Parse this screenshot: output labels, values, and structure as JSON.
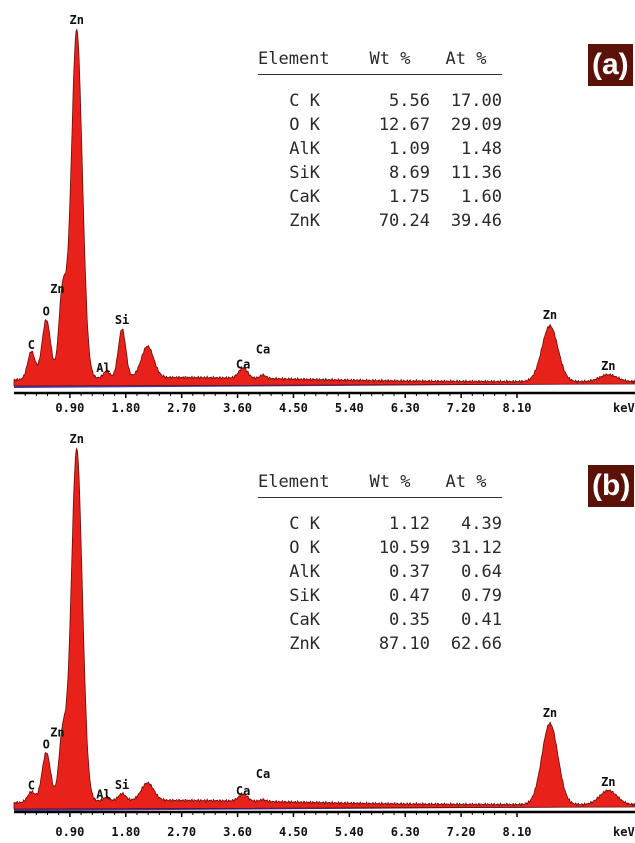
{
  "panels": [
    {
      "tag": "(a)",
      "table": {
        "headers": [
          "Element",
          "Wt %",
          "At %"
        ],
        "rows": [
          {
            "el": "C K",
            "wt": "5.56",
            "at": "17.00"
          },
          {
            "el": "O K",
            "wt": "12.67",
            "at": "29.09"
          },
          {
            "el": "AlK",
            "wt": "1.09",
            "at": "1.48"
          },
          {
            "el": "SiK",
            "wt": "8.69",
            "at": "11.36"
          },
          {
            "el": "CaK",
            "wt": "1.75",
            "at": "1.60"
          },
          {
            "el": "ZnK",
            "wt": "70.24",
            "at": "39.46"
          }
        ]
      }
    },
    {
      "tag": "(b)",
      "table": {
        "headers": [
          "Element",
          "Wt %",
          "At %"
        ],
        "rows": [
          {
            "el": "C K",
            "wt": "1.12",
            "at": "4.39"
          },
          {
            "el": "O K",
            "wt": "10.59",
            "at": "31.12"
          },
          {
            "el": "AlK",
            "wt": "0.37",
            "at": "0.64"
          },
          {
            "el": "SiK",
            "wt": "0.47",
            "at": "0.79"
          },
          {
            "el": "CaK",
            "wt": "0.35",
            "at": "0.41"
          },
          {
            "el": "ZnK",
            "wt": "87.10",
            "at": "62.66"
          }
        ]
      }
    }
  ],
  "chart_data": [
    {
      "type": "area",
      "xlabel": "keV",
      "x_ticks": [
        "0.90",
        "1.80",
        "2.70",
        "3.60",
        "4.50",
        "5.40",
        "6.30",
        "7.20",
        "8.10"
      ],
      "xlim": [
        0,
        10
      ],
      "ylim": [
        0,
        1
      ],
      "peaks": [
        {
          "label": "C",
          "x": 0.28,
          "y": 0.08
        },
        {
          "label": "O",
          "x": 0.52,
          "y": 0.17
        },
        {
          "label": "Zn",
          "x": 0.78,
          "y": 0.24
        },
        {
          "label": "Zn",
          "x": 1.01,
          "y": 1.0
        },
        {
          "label": "Al",
          "x": 1.49,
          "y": 0.02
        },
        {
          "label": "Si",
          "x": 1.74,
          "y": 0.14
        },
        {
          "label": "",
          "x": 2.15,
          "y": 0.09
        },
        {
          "label": "Ca",
          "x": 3.69,
          "y": 0.03
        },
        {
          "label": "Ca",
          "x": 4.01,
          "y": 0.01
        },
        {
          "label": "Zn",
          "x": 8.63,
          "y": 0.16
        },
        {
          "label": "Zn",
          "x": 9.57,
          "y": 0.02
        }
      ],
      "fill_color": "#e8211b",
      "baseline_color": "#3b3cb5"
    },
    {
      "type": "area",
      "xlabel": "keV",
      "x_ticks": [
        "0.90",
        "1.80",
        "2.70",
        "3.60",
        "4.50",
        "5.40",
        "6.30",
        "7.20",
        "8.10"
      ],
      "xlim": [
        0,
        10
      ],
      "ylim": [
        0,
        1
      ],
      "peaks": [
        {
          "label": "C",
          "x": 0.28,
          "y": 0.03
        },
        {
          "label": "O",
          "x": 0.52,
          "y": 0.14
        },
        {
          "label": "Zn",
          "x": 0.78,
          "y": 0.18
        },
        {
          "label": "Zn",
          "x": 1.01,
          "y": 1.0
        },
        {
          "label": "Al",
          "x": 1.49,
          "y": 0.01
        },
        {
          "label": "Si",
          "x": 1.74,
          "y": 0.02
        },
        {
          "label": "",
          "x": 2.15,
          "y": 0.05
        },
        {
          "label": "Ca",
          "x": 3.69,
          "y": 0.02
        },
        {
          "label": "Ca",
          "x": 4.01,
          "y": 0.005
        },
        {
          "label": "Zn",
          "x": 8.63,
          "y": 0.23
        },
        {
          "label": "Zn",
          "x": 9.57,
          "y": 0.04
        }
      ],
      "fill_color": "#e8211b",
      "baseline_color": "#3b3cb5"
    }
  ]
}
